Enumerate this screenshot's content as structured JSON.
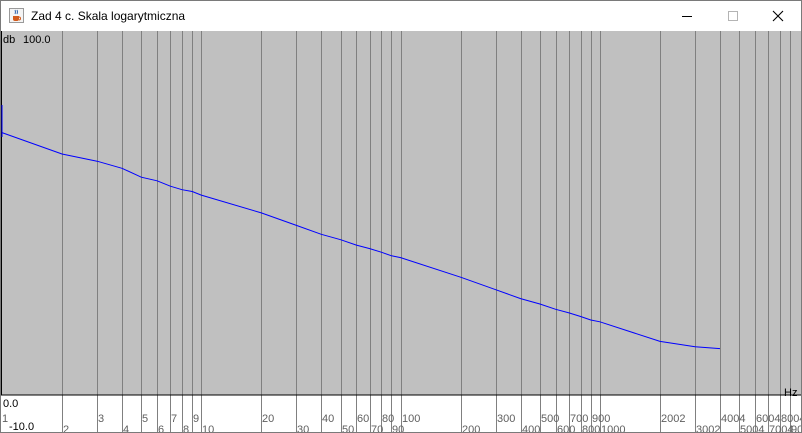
{
  "window": {
    "title": "Zad 4 c. Skala logarytmiczna",
    "icons": {
      "app": "java-cup-icon",
      "minimize": "minimize-icon",
      "maximize": "maximize-icon",
      "close": "close-icon"
    }
  },
  "chart_data": {
    "type": "line",
    "xscale": "log",
    "xlabel": "Hz",
    "ylabel": "db",
    "ytick_top": "100.0",
    "ytick_mid": "0.0",
    "ytick_bottom": "-10.0",
    "ylim": [
      -10,
      100
    ],
    "xlim": [
      1,
      10000
    ],
    "grid": true,
    "colors": {
      "plot_bg": "#c0c0c0",
      "grid": "#808080",
      "line": "#0000ff",
      "tick_text": "#606060",
      "label_text": "#000000"
    },
    "x_ticks_row1": [
      "1",
      "3",
      "5",
      "7",
      "9",
      "20",
      "40",
      "60",
      "80",
      "100",
      "300",
      "500",
      "700",
      "900",
      "2002",
      "4004",
      "6004",
      "8004"
    ],
    "x_ticks_row2": [
      "2",
      "4",
      "6",
      "8",
      "10",
      "30",
      "50",
      "70",
      "90",
      "200",
      "400",
      "600",
      "800",
      "1000",
      "3002",
      "5004",
      "7004",
      "9004"
    ],
    "series": [
      {
        "x": [
          1,
          2,
          3,
          4,
          5,
          6,
          7,
          8,
          9,
          10,
          20,
          30,
          40,
          50,
          60,
          70,
          80,
          90,
          100,
          200,
          300,
          400,
          500,
          600,
          700,
          800,
          900,
          1000,
          2002,
          3002,
          4004
        ],
        "y": [
          73.5,
          67.5,
          65.5,
          63.5,
          61,
          60,
          58.5,
          57.5,
          57,
          56,
          51,
          47.5,
          45,
          43.5,
          42,
          41,
          40,
          39,
          38.5,
          33,
          29.5,
          27,
          25.5,
          24,
          23,
          22,
          21,
          20.5,
          15,
          13.5,
          13
        ]
      }
    ]
  }
}
